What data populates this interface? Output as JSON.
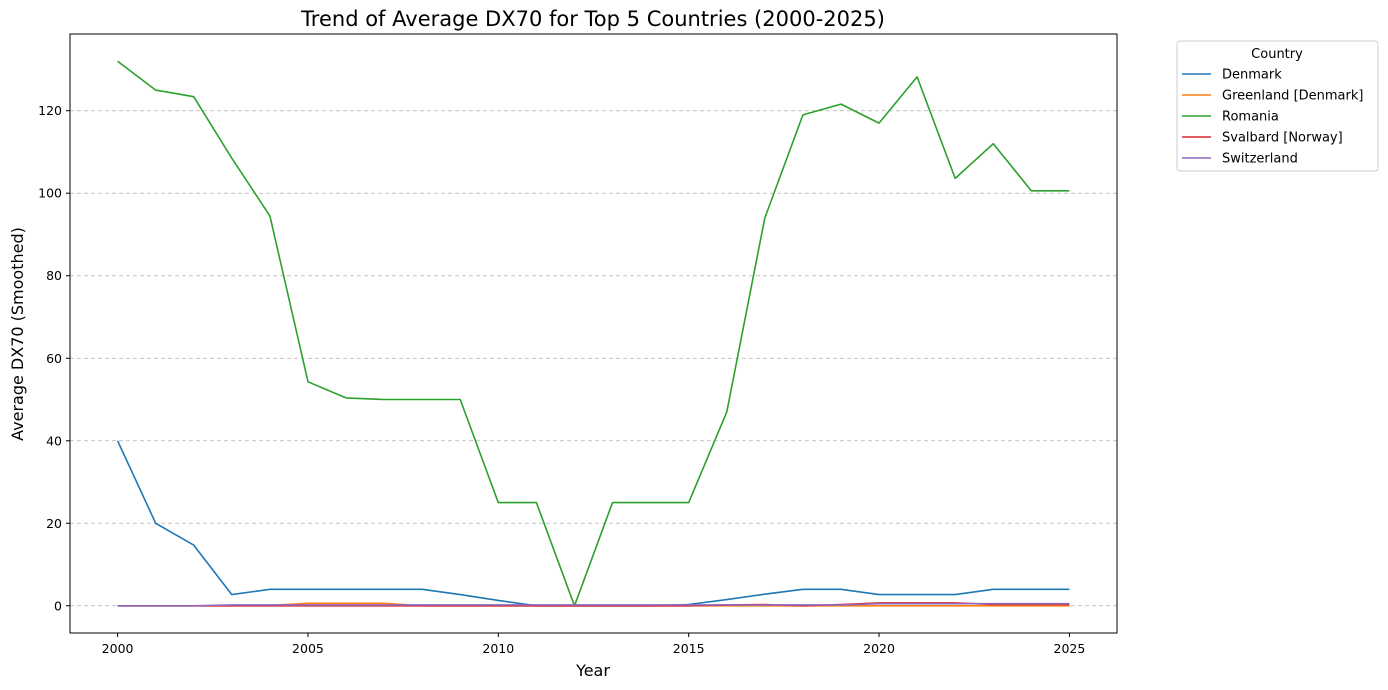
{
  "chart_data": {
    "type": "line",
    "title": "Trend of Average DX70 for Top 5 Countries (2000-2025)",
    "xlabel": "Year",
    "ylabel": "Average DX70 (Smoothed)",
    "xlim": [
      1998.75,
      2026.25
    ],
    "ylim": [
      -6.6,
      138.6
    ],
    "xticks": [
      2000,
      2005,
      2010,
      2015,
      2020,
      2025
    ],
    "yticks": [
      0,
      20,
      40,
      60,
      80,
      100,
      120
    ],
    "grid": "horizontal dashed",
    "legend": {
      "title": "Country",
      "placement": "outside top-right"
    },
    "x": [
      2000,
      2001,
      2002,
      2003,
      2004,
      2005,
      2006,
      2007,
      2008,
      2009,
      2010,
      2011,
      2012,
      2013,
      2014,
      2015,
      2016,
      2017,
      2018,
      2019,
      2020,
      2021,
      2022,
      2023,
      2024,
      2025
    ],
    "series": [
      {
        "name": "Denmark",
        "color": "#1f77b4",
        "values": [
          40,
          20,
          14.7,
          2.7,
          4,
          4,
          4,
          4,
          4,
          2.7,
          1.3,
          0,
          0,
          0,
          0,
          0.3,
          1.5,
          2.8,
          4,
          4,
          2.7,
          2.7,
          2.7,
          4,
          4,
          4
        ]
      },
      {
        "name": "Greenland [Denmark]",
        "color": "#ff7f0e",
        "values": [
          0,
          0,
          0,
          0,
          0.1,
          0.6,
          0.6,
          0.6,
          0,
          0,
          0,
          0,
          0,
          0,
          0,
          0,
          0,
          0,
          0,
          0,
          0,
          0,
          0,
          0,
          0,
          0
        ]
      },
      {
        "name": "Romania",
        "color": "#2ca02c",
        "values": [
          132,
          125,
          123.4,
          108.5,
          94.5,
          54.3,
          50.4,
          50,
          50,
          50,
          25,
          25,
          0,
          25,
          25,
          25,
          47,
          94,
          119,
          121.6,
          117,
          128.2,
          103.6,
          112,
          100.6,
          100.6
        ]
      },
      {
        "name": "Svalbard [Norway]",
        "color": "#d62728",
        "values": [
          0,
          0,
          0,
          0,
          0,
          0,
          0,
          0,
          0,
          0,
          0,
          0,
          0,
          0,
          0,
          0,
          0.2,
          0.3,
          0,
          0.3,
          0.7,
          0.7,
          0.7,
          0.3,
          0.3,
          0.3
        ]
      },
      {
        "name": "Switzerland",
        "color": "#9467bd",
        "values": [
          0,
          0,
          0,
          0.2,
          0.2,
          0.2,
          0.2,
          0.2,
          0.2,
          0.2,
          0.2,
          0.2,
          0.2,
          0.2,
          0.2,
          0.2,
          0.2,
          0.2,
          0.2,
          0.2,
          0.5,
          0.5,
          0.5,
          0.5,
          0.5,
          0.5
        ]
      }
    ]
  }
}
